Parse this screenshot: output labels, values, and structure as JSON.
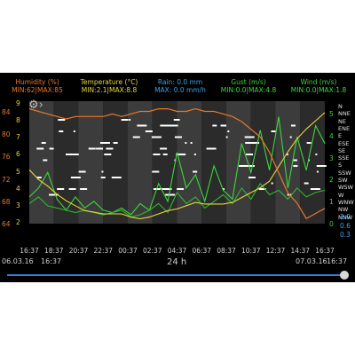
{
  "header": {
    "humidity": {
      "label": "Humidity (%)",
      "range": "MIN:62|MAX:85",
      "color": "#e8782a"
    },
    "temperature": {
      "label": "Temperature (°C)",
      "range": "MIN:2.1|MAX:8.8",
      "color": "#e8d83a"
    },
    "rain": {
      "label": "Rain: 0.0 mm",
      "range": "MAX: 0.0 mm/h",
      "color": "#3aa0e8"
    },
    "gust": {
      "label": "Gust (m/s)",
      "range": "MIN:0.0|MAX:4.8",
      "color": "#3ad83a"
    },
    "wind": {
      "label": "Wind (m/s)",
      "range": "MIN:0.0|MAX:1.8",
      "color": "#3ad83a"
    }
  },
  "left_axis": {
    "humidity_ticks": [
      "84",
      "80",
      "76",
      "72",
      "68",
      "64"
    ],
    "temperature_ticks": [
      "9",
      "8",
      "7",
      "6",
      "5",
      "4",
      "3",
      "2"
    ]
  },
  "right_axis": {
    "wind_ticks": [
      "5",
      "4",
      "3",
      "2",
      "1",
      "0"
    ],
    "directions": [
      "N",
      "NNE",
      "NE",
      "ENE",
      "E",
      "ESE",
      "SE",
      "SSE",
      "S",
      "SSW",
      "SW",
      "WSW",
      "W",
      "WNW",
      "NW",
      "NNW"
    ],
    "rain_ticks": [
      "3.0",
      "0.6",
      "0.3"
    ]
  },
  "time_ticks": [
    "16:37",
    "18:37",
    "20:37",
    "22:37",
    "00:37",
    "02:37",
    "04:37",
    "06:37",
    "08:37",
    "10:37",
    "12:37",
    "14:37",
    "16:37"
  ],
  "footer": {
    "start_date": "06.03.16",
    "start_time": "16:37",
    "period": "24 h",
    "end_date": "07.03.16",
    "end_time": "16:37"
  },
  "scroll_position": 1.0,
  "chart_data": {
    "type": "line",
    "x_ticks": [
      "16:37",
      "18:37",
      "20:37",
      "22:37",
      "00:37",
      "02:37",
      "04:37",
      "06:37",
      "08:37",
      "10:37",
      "12:37",
      "14:37",
      "16:37"
    ],
    "humidity": [
      84.5,
      84,
      83.5,
      83,
      82.5,
      83,
      83,
      83,
      83,
      83.5,
      83,
      83.5,
      84,
      84,
      84.5,
      84.5,
      84,
      84,
      84.5,
      84,
      84,
      83.5,
      83,
      82,
      80.5,
      79,
      76,
      72,
      68,
      66,
      63,
      64,
      65
    ],
    "temperature": [
      5.3,
      4.7,
      4.3,
      3.8,
      3.4,
      3.1,
      2.8,
      2.7,
      2.6,
      2.6,
      2.6,
      2.4,
      2.3,
      2.4,
      2.6,
      2.8,
      2.9,
      3.1,
      3.3,
      3.2,
      3.2,
      3.2,
      3.3,
      3.6,
      3.9,
      4.2,
      4.6,
      5.5,
      6.4,
      7.2,
      7.8,
      8.3,
      8.8
    ],
    "gust": [
      1.2,
      1.6,
      2.3,
      1.1,
      0.6,
      1.2,
      0.7,
      1.0,
      0.6,
      0.5,
      0.7,
      0.4,
      0.9,
      0.6,
      1.8,
      1.0,
      3.2,
      1.6,
      2.2,
      1.0,
      2.6,
      1.5,
      1.1,
      3.6,
      2.3,
      4.2,
      2.4,
      4.8,
      1.6,
      3.9,
      2.4,
      4.4,
      3.6
    ],
    "wind": [
      0.9,
      1.2,
      0.8,
      0.7,
      0.6,
      0.5,
      0.6,
      0.5,
      0.4,
      0.5,
      0.6,
      0.3,
      0.4,
      0.6,
      0.9,
      0.5,
      1.4,
      0.9,
      1.2,
      0.7,
      1.0,
      1.3,
      0.9,
      1.6,
      1.1,
      1.8,
      1.3,
      1.5,
      1.1,
      1.6,
      1.2,
      1.4,
      1.5
    ],
    "ylim_humidity": [
      62,
      86
    ],
    "ylim_temperature": [
      2,
      9.5
    ],
    "ylim_wind": [
      0,
      5.5
    ]
  }
}
